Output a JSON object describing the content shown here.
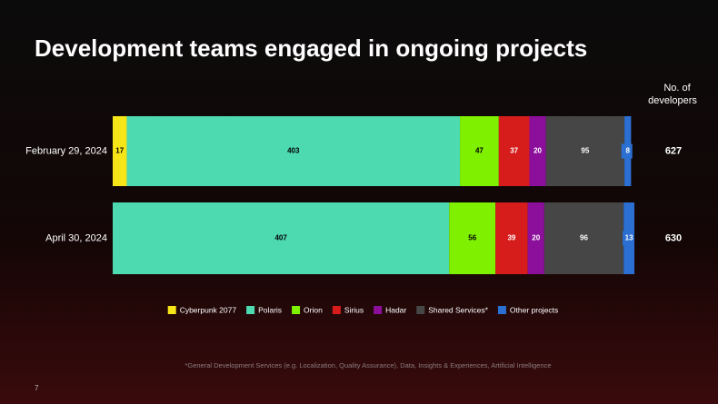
{
  "chart_data": {
    "type": "stacked-barh",
    "title": "Development teams engaged in ongoing projects",
    "totals_label": [
      "No. of",
      "developers"
    ],
    "categories": [
      "February 29, 2024",
      "April 30, 2024"
    ],
    "totals": [
      627,
      630
    ],
    "series": [
      {
        "name": "Cyberpunk 2077",
        "color": "#f7e617",
        "values": [
          17,
          null
        ]
      },
      {
        "name": "Polaris",
        "color": "#4ddab1",
        "values": [
          403,
          407
        ]
      },
      {
        "name": "Orion",
        "color": "#7ff000",
        "values": [
          47,
          56
        ]
      },
      {
        "name": "Sirius",
        "color": "#d71c1c",
        "values": [
          37,
          39
        ]
      },
      {
        "name": "Hadar",
        "color": "#8b0f9b",
        "values": [
          20,
          20
        ]
      },
      {
        "name": "Shared Services*",
        "color": "#464646",
        "values": [
          95,
          96
        ]
      },
      {
        "name": "Other projects",
        "color": "#2b6fd2",
        "values": [
          8,
          13
        ]
      }
    ],
    "footnote": "*General Development Services (e.g. Localization, Quality Assurance), Data, Insights & Experiences, Artificial Intelligence",
    "page_number": "7"
  }
}
